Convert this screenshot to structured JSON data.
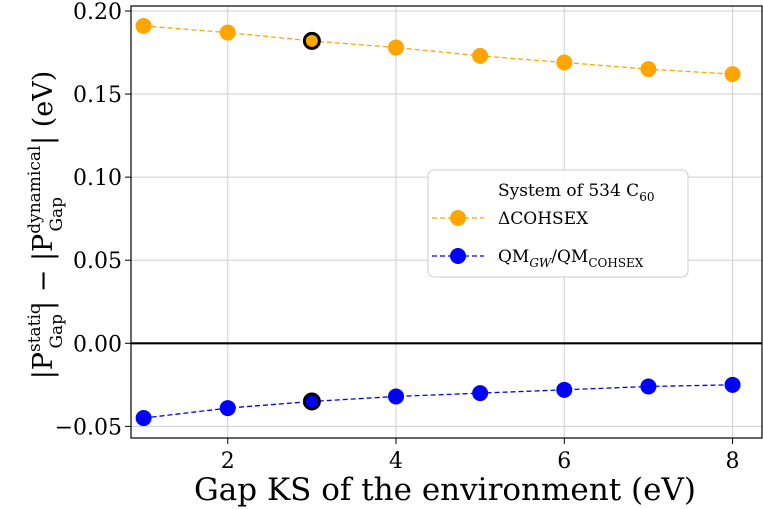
{
  "chart_data": {
    "type": "line",
    "xlabel": "Gap KS of the environment (eV)",
    "ylabel": {
      "prefix": "|P",
      "sup1": "static",
      "sub1": "Gap",
      "middle": "| − |P",
      "sup2": "dynamical",
      "sub2": "Gap",
      "suffix": "| (eV)"
    },
    "xlim": [
      0.85,
      8.35
    ],
    "ylim": [
      -0.057,
      0.203
    ],
    "xticks": [
      2,
      4,
      6,
      8
    ],
    "yticks": [
      -0.05,
      0.0,
      0.05,
      0.1,
      0.15,
      0.2
    ],
    "ytick_labels": [
      "−0.05",
      "0.00",
      "0.05",
      "0.10",
      "0.15",
      "0.20"
    ],
    "grid": true,
    "zero_line": 0,
    "legend": {
      "position": "center-right",
      "title_main": "System of 534 C",
      "title_sub": "60"
    },
    "series": [
      {
        "name": "ΔCOHSEX",
        "color": "#FFA500",
        "x": [
          1,
          2,
          3,
          4,
          5,
          6,
          7,
          8
        ],
        "y": [
          0.191,
          0.187,
          0.182,
          0.178,
          0.173,
          0.169,
          0.165,
          0.162
        ],
        "highlight_x": 3
      },
      {
        "name": "QM_GW/QM_COHSEX",
        "name_parts": {
          "a": "QM",
          "a_sub": "GW",
          "sep": "/QM",
          "b_sub": "COHSEX"
        },
        "color": "#0000FF",
        "x": [
          1,
          2,
          3,
          4,
          5,
          6,
          7,
          8
        ],
        "y": [
          -0.045,
          -0.039,
          -0.035,
          -0.032,
          -0.03,
          -0.028,
          -0.026,
          -0.025
        ],
        "highlight_x": 3
      }
    ]
  }
}
